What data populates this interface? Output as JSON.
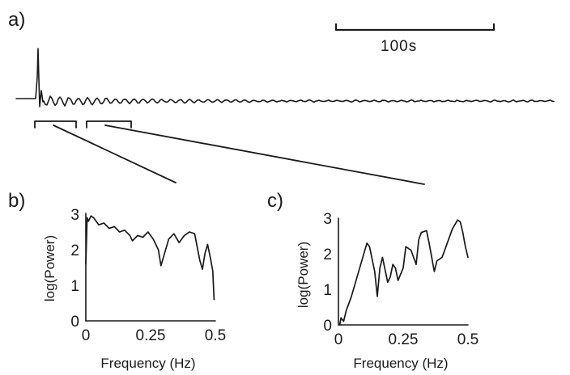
{
  "panel_a": {
    "label": "a)",
    "scale_bar_label": "100s"
  },
  "chart_data": [
    {
      "panel": "b)",
      "type": "line",
      "xlabel": "Frequency (Hz)",
      "ylabel": "log(Power)",
      "xlim": [
        0,
        0.5
      ],
      "ylim": [
        0,
        3
      ],
      "xticks": [
        "0",
        "0.25",
        "0.5"
      ],
      "yticks": [
        "0",
        "1",
        "2",
        "3"
      ],
      "x": [
        0.0,
        0.005,
        0.01,
        0.02,
        0.03,
        0.05,
        0.07,
        0.09,
        0.11,
        0.13,
        0.15,
        0.17,
        0.18,
        0.2,
        0.22,
        0.24,
        0.26,
        0.28,
        0.29,
        0.3,
        0.32,
        0.34,
        0.36,
        0.38,
        0.4,
        0.42,
        0.44,
        0.45,
        0.46,
        0.47,
        0.48,
        0.49,
        0.495
      ],
      "y": [
        1.6,
        2.9,
        2.8,
        2.95,
        2.9,
        2.7,
        2.75,
        2.6,
        2.65,
        2.5,
        2.55,
        2.4,
        2.25,
        2.4,
        2.35,
        2.5,
        2.3,
        2.0,
        1.55,
        1.8,
        2.3,
        2.45,
        2.2,
        2.4,
        2.5,
        2.45,
        1.7,
        1.45,
        1.9,
        2.15,
        1.8,
        1.4,
        0.6
      ]
    },
    {
      "panel": "c)",
      "type": "line",
      "xlabel": "Frequency (Hz)",
      "ylabel": "log(Power)",
      "xlim": [
        0,
        0.5
      ],
      "ylim": [
        0,
        3
      ],
      "xticks": [
        "0",
        "0.25",
        "0.5"
      ],
      "yticks": [
        "0",
        "1",
        "2",
        "3"
      ],
      "x": [
        0.005,
        0.01,
        0.02,
        0.03,
        0.05,
        0.07,
        0.09,
        0.11,
        0.12,
        0.14,
        0.15,
        0.16,
        0.17,
        0.19,
        0.2,
        0.21,
        0.22,
        0.23,
        0.25,
        0.26,
        0.28,
        0.3,
        0.31,
        0.32,
        0.34,
        0.35,
        0.37,
        0.38,
        0.4,
        0.42,
        0.44,
        0.46,
        0.47,
        0.48,
        0.49,
        0.5
      ],
      "y": [
        0.0,
        0.2,
        0.1,
        0.4,
        0.8,
        1.3,
        1.8,
        2.3,
        2.2,
        1.5,
        0.8,
        1.6,
        1.9,
        1.2,
        1.35,
        1.7,
        1.6,
        1.25,
        1.6,
        2.2,
        2.1,
        1.7,
        2.4,
        2.6,
        2.65,
        2.3,
        1.5,
        1.8,
        1.9,
        2.3,
        2.7,
        2.95,
        2.9,
        2.6,
        2.2,
        1.9
      ]
    }
  ]
}
